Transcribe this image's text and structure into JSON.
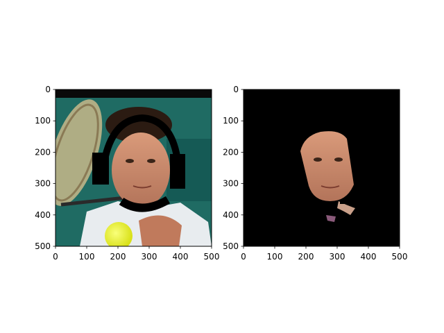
{
  "chart_data": [
    {
      "type": "image",
      "xlim": [
        0,
        500
      ],
      "ylim": [
        500,
        0
      ],
      "xticks": [
        0,
        100,
        200,
        300,
        400,
        500
      ],
      "yticks": [
        0,
        100,
        200,
        300,
        400,
        500
      ],
      "xtick_labels": [
        "0",
        "100",
        "200",
        "300",
        "400",
        "500"
      ],
      "ytick_labels": [
        "0",
        "100",
        "200",
        "300",
        "400",
        "500"
      ],
      "image_content": "photo",
      "grid": false
    },
    {
      "type": "image",
      "xlim": [
        0,
        500
      ],
      "ylim": [
        500,
        0
      ],
      "xticks": [
        0,
        100,
        200,
        300,
        400,
        500
      ],
      "yticks": [
        0,
        100,
        200,
        300,
        400,
        500
      ],
      "xtick_labels": [
        "0",
        "100",
        "200",
        "300",
        "400",
        "500"
      ],
      "ytick_labels": [
        "0",
        "100",
        "200",
        "300",
        "400",
        "500"
      ],
      "image_content": "segmentation mask",
      "grid": false
    }
  ]
}
